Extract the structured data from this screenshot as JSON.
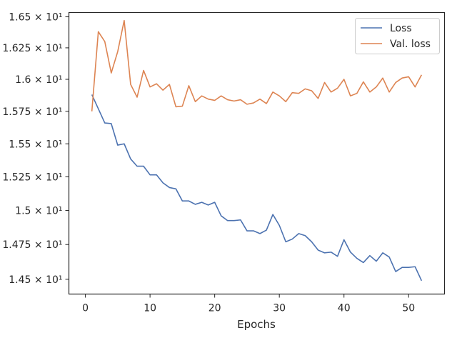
{
  "chart_data": {
    "type": "line",
    "xlabel": "Epochs",
    "ylabel": "",
    "xlim": [
      -2.55,
      55.55
    ],
    "ylim": [
      14.395,
      16.535
    ],
    "x_ticks": [
      0,
      10,
      20,
      30,
      40,
      50
    ],
    "y_ticks": [
      {
        "value": 14.5,
        "label": "1.45 × 10¹"
      },
      {
        "value": 14.75,
        "label": "1.475 × 10¹"
      },
      {
        "value": 15.0,
        "label": "1.5 × 10¹"
      },
      {
        "value": 15.25,
        "label": "1.525 × 10¹"
      },
      {
        "value": 15.5,
        "label": "1.55 × 10¹"
      },
      {
        "value": 15.75,
        "label": "1.575 × 10¹"
      },
      {
        "value": 16.0,
        "label": "1.6 × 10¹"
      },
      {
        "value": 16.25,
        "label": "1.625 × 10¹"
      },
      {
        "value": 16.5,
        "label": "1.65 × 10¹"
      }
    ],
    "y_scale": "log",
    "grid": false,
    "legend_position": "upper-right",
    "x": [
      1,
      2,
      3,
      4,
      5,
      6,
      7,
      8,
      9,
      10,
      11,
      12,
      13,
      14,
      15,
      16,
      17,
      18,
      19,
      20,
      21,
      22,
      23,
      24,
      25,
      26,
      27,
      28,
      29,
      30,
      31,
      32,
      33,
      34,
      35,
      36,
      37,
      38,
      39,
      40,
      41,
      42,
      43,
      44,
      45,
      46,
      47,
      48,
      49,
      50,
      51,
      52
    ],
    "series": [
      {
        "name": "Loss",
        "color": "#4c72b0",
        "values": [
          15.88,
          15.77,
          15.66,
          15.655,
          15.49,
          15.5,
          15.385,
          15.33,
          15.33,
          15.265,
          15.265,
          15.205,
          15.17,
          15.16,
          15.07,
          15.07,
          15.045,
          15.06,
          15.04,
          15.06,
          14.96,
          14.925,
          14.925,
          14.93,
          14.85,
          14.85,
          14.83,
          14.855,
          14.97,
          14.89,
          14.77,
          14.79,
          14.83,
          14.815,
          14.77,
          14.71,
          14.69,
          14.695,
          14.665,
          14.785,
          14.695,
          14.65,
          14.62,
          14.67,
          14.63,
          14.69,
          14.66,
          14.555,
          14.585,
          14.585,
          14.59,
          14.49
        ]
      },
      {
        "name": "Val. loss",
        "color": "#dd8452",
        "values": [
          15.75,
          16.38,
          16.3,
          16.05,
          16.22,
          16.47,
          15.96,
          15.86,
          16.07,
          15.94,
          15.965,
          15.915,
          15.96,
          15.785,
          15.79,
          15.95,
          15.825,
          15.87,
          15.845,
          15.835,
          15.87,
          15.84,
          15.83,
          15.84,
          15.805,
          15.815,
          15.845,
          15.81,
          15.9,
          15.87,
          15.825,
          15.895,
          15.89,
          15.925,
          15.91,
          15.85,
          15.975,
          15.9,
          15.93,
          16.0,
          15.87,
          15.89,
          15.98,
          15.9,
          15.94,
          16.01,
          15.9,
          15.975,
          16.01,
          16.02,
          15.94,
          16.035
        ]
      }
    ]
  }
}
